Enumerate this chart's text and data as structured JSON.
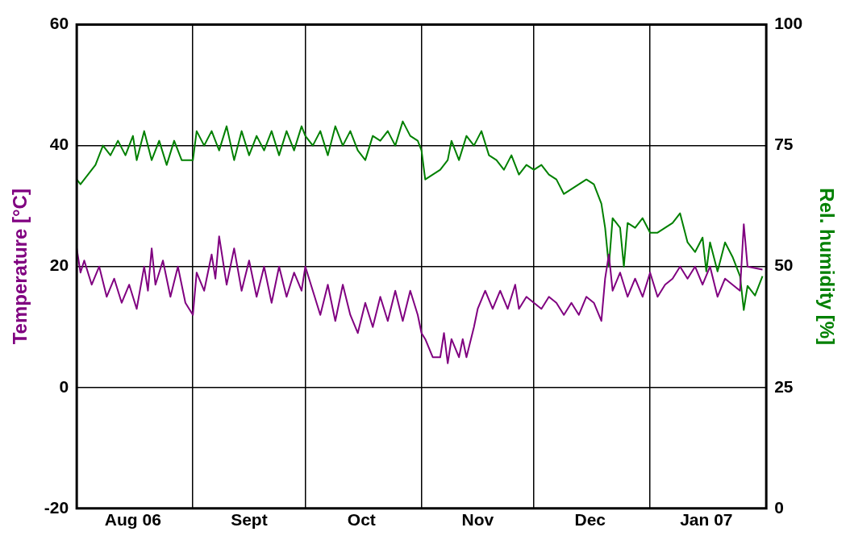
{
  "chart_data": {
    "type": "line",
    "ylabel": "Temperature [°C]",
    "y2label": "Rel. humidity [%]",
    "xlim": [
      "2006-08-01",
      "2007-02-01"
    ],
    "xticks": [
      {
        "value": "2006-08-16",
        "label": "Aug 06"
      },
      {
        "value": "2006-09-01",
        "label": null
      },
      {
        "value": "2006-09-16",
        "label": "Sept"
      },
      {
        "value": "2006-10-01",
        "label": null
      },
      {
        "value": "2006-10-16",
        "label": "Oct"
      },
      {
        "value": "2006-11-01",
        "label": null
      },
      {
        "value": "2006-11-16",
        "label": "Nov"
      },
      {
        "value": "2006-12-01",
        "label": null
      },
      {
        "value": "2006-12-16",
        "label": "Dec"
      },
      {
        "value": "2007-01-01",
        "label": null
      },
      {
        "value": "2007-01-16",
        "label": "Jan 07"
      }
    ],
    "ylim": [
      -20,
      60
    ],
    "yticks": [
      -20,
      0,
      20,
      40,
      60
    ],
    "y2lim": [
      0,
      100
    ],
    "y2ticks": [
      0,
      25,
      50,
      75,
      100
    ],
    "grid": true,
    "legend": false,
    "marker": "none",
    "line_style": "solid",
    "series": [
      {
        "color": "#800080",
        "x": [
          "2006-08-01",
          "2006-08-02",
          "2006-08-03",
          "2006-08-05",
          "2006-08-07",
          "2006-08-09",
          "2006-08-11",
          "2006-08-13",
          "2006-08-15",
          "2006-08-17",
          "2006-08-19",
          "2006-08-20",
          "2006-08-21",
          "2006-08-22",
          "2006-08-24",
          "2006-08-26",
          "2006-08-28",
          "2006-08-30",
          "2006-09-01",
          "2006-09-02",
          "2006-09-04",
          "2006-09-06",
          "2006-09-07",
          "2006-09-08",
          "2006-09-10",
          "2006-09-12",
          "2006-09-14",
          "2006-09-16",
          "2006-09-18",
          "2006-09-20",
          "2006-09-22",
          "2006-09-24",
          "2006-09-26",
          "2006-09-28",
          "2006-09-30",
          "2006-10-01",
          "2006-10-03",
          "2006-10-05",
          "2006-10-07",
          "2006-10-09",
          "2006-10-11",
          "2006-10-13",
          "2006-10-15",
          "2006-10-17",
          "2006-10-19",
          "2006-10-21",
          "2006-10-23",
          "2006-10-25",
          "2006-10-27",
          "2006-10-29",
          "2006-10-31",
          "2006-11-01",
          "2006-11-02",
          "2006-11-04",
          "2006-11-06",
          "2006-11-07",
          "2006-11-08",
          "2006-11-09",
          "2006-11-11",
          "2006-11-12",
          "2006-11-13",
          "2006-11-15",
          "2006-11-16",
          "2006-11-18",
          "2006-11-20",
          "2006-11-22",
          "2006-11-24",
          "2006-11-26",
          "2006-11-27",
          "2006-11-29",
          "2006-12-01",
          "2006-12-03",
          "2006-12-05",
          "2006-12-07",
          "2006-12-09",
          "2006-12-11",
          "2006-12-13",
          "2006-12-15",
          "2006-12-17",
          "2006-12-19",
          "2006-12-20",
          "2006-12-21",
          "2006-12-22",
          "2006-12-24",
          "2006-12-26",
          "2006-12-28",
          "2006-12-30",
          "2007-01-01",
          "2007-01-03",
          "2007-01-05",
          "2007-01-07",
          "2007-01-09",
          "2007-01-11",
          "2007-01-13",
          "2007-01-15",
          "2007-01-17",
          "2007-01-19",
          "2007-01-21",
          "2007-01-23",
          "2007-01-25",
          "2007-01-26",
          "2007-01-27",
          "2007-01-31"
        ],
        "values": [
          23,
          19,
          21,
          17,
          20,
          15,
          18,
          14,
          17,
          13,
          20,
          16,
          23,
          17,
          21,
          15,
          20,
          14,
          12,
          19,
          16,
          22,
          18,
          25,
          17,
          23,
          16,
          21,
          15,
          20,
          14,
          20,
          15,
          19,
          16,
          20,
          16,
          12,
          17,
          11,
          17,
          12,
          9,
          14,
          10,
          15,
          11,
          16,
          11,
          16,
          12,
          9,
          8,
          5,
          5,
          9,
          4,
          8,
          5,
          8,
          5,
          10,
          13,
          16,
          13,
          16,
          13,
          17,
          13,
          15,
          14,
          13,
          15,
          14,
          12,
          14,
          12,
          15,
          14,
          11,
          18,
          22,
          16,
          19,
          15,
          18,
          15,
          19,
          15,
          17,
          18,
          20,
          18,
          20,
          17,
          20,
          15,
          18,
          17,
          16,
          27,
          20,
          19.5
        ]
      },
      {
        "color": "#008000",
        "axis": "y2",
        "x": [
          "2006-08-01",
          "2006-08-02",
          "2006-08-04",
          "2006-08-06",
          "2006-08-08",
          "2006-08-10",
          "2006-08-12",
          "2006-08-14",
          "2006-08-16",
          "2006-08-17",
          "2006-08-19",
          "2006-08-21",
          "2006-08-23",
          "2006-08-25",
          "2006-08-27",
          "2006-08-29",
          "2006-09-01",
          "2006-09-02",
          "2006-09-04",
          "2006-09-06",
          "2006-09-08",
          "2006-09-10",
          "2006-09-12",
          "2006-09-14",
          "2006-09-16",
          "2006-09-18",
          "2006-09-20",
          "2006-09-22",
          "2006-09-24",
          "2006-09-26",
          "2006-09-28",
          "2006-09-30",
          "2006-10-01",
          "2006-10-03",
          "2006-10-05",
          "2006-10-07",
          "2006-10-09",
          "2006-10-11",
          "2006-10-13",
          "2006-10-15",
          "2006-10-17",
          "2006-10-19",
          "2006-10-21",
          "2006-10-23",
          "2006-10-25",
          "2006-10-27",
          "2006-10-29",
          "2006-10-31",
          "2006-11-01",
          "2006-11-02",
          "2006-11-04",
          "2006-11-06",
          "2006-11-08",
          "2006-11-09",
          "2006-11-11",
          "2006-11-13",
          "2006-11-15",
          "2006-11-17",
          "2006-11-19",
          "2006-11-21",
          "2006-11-23",
          "2006-11-25",
          "2006-11-27",
          "2006-11-29",
          "2006-12-01",
          "2006-12-03",
          "2006-12-05",
          "2006-12-07",
          "2006-12-09",
          "2006-12-11",
          "2006-12-13",
          "2006-12-15",
          "2006-12-17",
          "2006-12-19",
          "2006-12-20",
          "2006-12-21",
          "2006-12-22",
          "2006-12-24",
          "2006-12-25",
          "2006-12-26",
          "2006-12-28",
          "2006-12-30",
          "2007-01-01",
          "2007-01-03",
          "2007-01-05",
          "2007-01-07",
          "2007-01-09",
          "2007-01-11",
          "2007-01-13",
          "2007-01-15",
          "2007-01-16",
          "2007-01-17",
          "2007-01-19",
          "2007-01-21",
          "2007-01-23",
          "2007-01-25",
          "2007-01-26",
          "2007-01-27",
          "2007-01-29",
          "2007-01-31"
        ],
        "values": [
          68,
          67,
          69,
          71,
          75,
          73,
          76,
          73,
          77,
          72,
          78,
          72,
          76,
          71,
          76,
          72,
          72,
          78,
          75,
          78,
          74,
          79,
          72,
          78,
          73,
          77,
          74,
          78,
          73,
          78,
          74,
          79,
          77,
          75,
          78,
          73,
          79,
          75,
          78,
          74,
          72,
          77,
          76,
          78,
          75,
          80,
          77,
          76,
          74,
          68,
          69,
          70,
          72,
          76,
          72,
          77,
          75,
          78,
          73,
          72,
          70,
          73,
          69,
          71,
          70,
          71,
          69,
          68,
          65,
          66,
          67,
          68,
          67,
          63,
          58,
          50,
          60,
          58,
          50,
          59,
          58,
          60,
          57,
          57,
          58,
          59,
          61,
          55,
          53,
          56,
          49,
          55,
          49,
          55,
          52,
          48,
          41,
          46,
          44,
          48
        ]
      }
    ]
  }
}
